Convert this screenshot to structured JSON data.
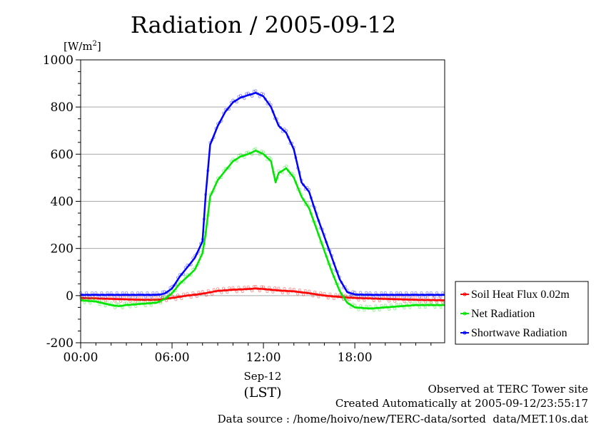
{
  "chart_data": {
    "type": "line",
    "title": "Radiation / 2005-09-12",
    "ylabel": "[W/m",
    "ylabel_sup": "2",
    "ylabel_suffix": "]",
    "ylim": [
      -200,
      1000
    ],
    "yticks": [
      -200,
      0,
      200,
      400,
      600,
      800,
      1000
    ],
    "ytick_labels": [
      "-200",
      "0",
      "200",
      "400",
      "600",
      "800",
      "1000"
    ],
    "xlim": [
      0,
      23.9
    ],
    "xticks": [
      0,
      6,
      12,
      18
    ],
    "xtick_labels": [
      "00:00",
      "06:00",
      "12:00",
      "18:00"
    ],
    "xlabel_date": "Sep-12",
    "xlabel_zone": "(LST)",
    "grid": "horizontal",
    "legend_position": "bottom-right, outside plot",
    "series": [
      {
        "name": "Soil Heat Flux 0.02m",
        "color": "#ff0000",
        "x": [
          0,
          1,
          2,
          3,
          4,
          5,
          6,
          7,
          8,
          9,
          10,
          11,
          11.5,
          12,
          13,
          14,
          15,
          16,
          17,
          18,
          19,
          20,
          21,
          22,
          23.9
        ],
        "y": [
          -10,
          -12,
          -14,
          -16,
          -18,
          -18,
          -10,
          0,
          8,
          20,
          25,
          28,
          30,
          28,
          22,
          18,
          10,
          0,
          -6,
          -10,
          -12,
          -14,
          -16,
          -18,
          -20
        ]
      },
      {
        "name": "Net Radiation",
        "color": "#00e600",
        "x": [
          0,
          1,
          2,
          2.5,
          3,
          4,
          5,
          5.5,
          6,
          6.5,
          7,
          7.5,
          8,
          8.2,
          8.5,
          9,
          9.5,
          10,
          10.5,
          11,
          11.5,
          12,
          12.5,
          12.8,
          13,
          13.5,
          14,
          14.5,
          15,
          15.5,
          16,
          16.5,
          17,
          17.5,
          18,
          19,
          20,
          21,
          22,
          23,
          23.9
        ],
        "y": [
          -20,
          -25,
          -40,
          -45,
          -40,
          -35,
          -30,
          -15,
          10,
          50,
          80,
          110,
          180,
          260,
          420,
          490,
          530,
          570,
          590,
          600,
          615,
          600,
          570,
          480,
          520,
          540,
          500,
          420,
          370,
          280,
          190,
          100,
          20,
          -30,
          -50,
          -55,
          -50,
          -45,
          -40,
          -40,
          -40
        ]
      },
      {
        "name": "Shortwave Radiation",
        "color": "#0000ff",
        "x": [
          0,
          1,
          2,
          3,
          4,
          5,
          5.5,
          6,
          6.5,
          7,
          7.5,
          8,
          8.2,
          8.5,
          9,
          9.5,
          10,
          10.5,
          11,
          11.5,
          12,
          12.5,
          13,
          13.5,
          14,
          14.5,
          15,
          15.5,
          16,
          16.5,
          17,
          17.5,
          18,
          19,
          20,
          21,
          22,
          23,
          23.9
        ],
        "y": [
          3,
          3,
          3,
          3,
          3,
          3,
          8,
          30,
          80,
          120,
          160,
          230,
          420,
          640,
          720,
          780,
          820,
          840,
          850,
          860,
          845,
          800,
          720,
          690,
          620,
          480,
          440,
          340,
          250,
          160,
          70,
          15,
          5,
          3,
          3,
          3,
          3,
          3,
          3
        ]
      }
    ]
  },
  "legend": [
    {
      "label": "Soil Heat Flux 0.02m",
      "color": "#ff0000"
    },
    {
      "label": "Net Radiation",
      "color": "#00e600"
    },
    {
      "label": "Shortwave Radiation",
      "color": "#0000ff"
    }
  ],
  "footer": {
    "line1": "Observed at TERC Tower site",
    "line2": "Created Automatically at 2005-09-12/23:55:17",
    "line3": "Data source : /home/hoivo/new/TERC-data/sorted  data/MET.10s.dat"
  }
}
